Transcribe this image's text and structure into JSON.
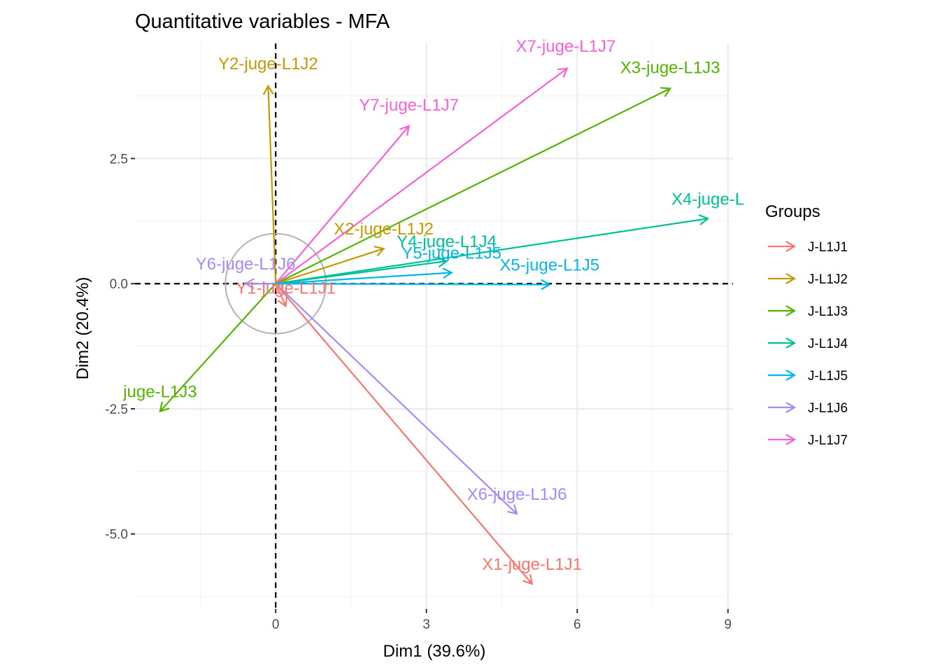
{
  "chart_data": {
    "type": "scatter",
    "subtype": "correlation-arrows",
    "title": "Quantitative variables - MFA",
    "xlabel": "Dim1 (39.6%)",
    "ylabel": "Dim2 (20.4%)",
    "xlim": [
      -2.8,
      9.1
    ],
    "ylim": [
      -6.5,
      4.8
    ],
    "x_ticks": [
      0,
      3,
      6,
      9
    ],
    "x_tick_labels": [
      "0",
      "3",
      "6",
      "9"
    ],
    "y_ticks": [
      -5.0,
      -2.5,
      0.0,
      2.5
    ],
    "y_tick_labels": [
      "-5.0",
      "-2.5",
      "0.0",
      "2.5"
    ],
    "x_minor_ticks": [
      -1.5,
      1.5,
      4.5,
      7.5
    ],
    "y_minor_ticks": [
      -6.25,
      -3.75,
      -1.25,
      1.25,
      3.75
    ],
    "grid": true,
    "reference_lines": {
      "x": 0,
      "y": 0,
      "style": "dashed"
    },
    "unit_circle_radius": 1,
    "legend": {
      "title": "Groups",
      "placement": "right",
      "entries": [
        {
          "name": "J-L1J1",
          "color": "#F8766D"
        },
        {
          "name": "J-L1J2",
          "color": "#C49A00"
        },
        {
          "name": "J-L1J3",
          "color": "#53B400"
        },
        {
          "name": "J-L1J4",
          "color": "#00C094"
        },
        {
          "name": "J-L1J5",
          "color": "#00B6EB"
        },
        {
          "name": "J-L1J6",
          "color": "#A58AFF"
        },
        {
          "name": "J-L1J7",
          "color": "#FB61D7"
        }
      ]
    },
    "variables": [
      {
        "label": "Y2-juge-L1J2",
        "group": "J-L1J2",
        "x": -0.15,
        "y": 3.95
      },
      {
        "label": "X7-juge-L1J7",
        "group": "J-L1J7",
        "x": 5.8,
        "y": 4.3
      },
      {
        "label": "X3-juge-L1J3",
        "group": "J-L1J3",
        "x": 7.85,
        "y": 3.9
      },
      {
        "label": "Y7-juge-L1J7",
        "group": "J-L1J7",
        "x": 2.65,
        "y": 3.15
      },
      {
        "label": "X4-juge-L",
        "group": "J-L1J4",
        "x": 8.6,
        "y": 1.3
      },
      {
        "label": "X2-juge-L1J2",
        "group": "J-L1J2",
        "x": 2.15,
        "y": 0.7
      },
      {
        "label": "Y4-juge-L1J4",
        "group": "J-L1J4",
        "x": 3.4,
        "y": 0.45
      },
      {
        "label": "Y5-juge-L1J5",
        "group": "J-L1J5",
        "x": 3.5,
        "y": 0.22
      },
      {
        "label": "X5-juge-L1J5",
        "group": "J-L1J5",
        "x": 5.45,
        "y": -0.02
      },
      {
        "label": "Y6-juge-L1J6",
        "group": "J-L1J6",
        "x": -0.6,
        "y": 0.0
      },
      {
        "label": "Y1-juge-L1J1",
        "group": "J-L1J1",
        "x": 0.2,
        "y": -0.45
      },
      {
        "label": "juge-L1J3",
        "group": "J-L1J3",
        "x": -2.3,
        "y": -2.55
      },
      {
        "label": "X6-juge-L1J6",
        "group": "J-L1J6",
        "x": 4.8,
        "y": -4.6
      },
      {
        "label": "X1-juge-L1J1",
        "group": "J-L1J1",
        "x": 5.1,
        "y": -6.0
      }
    ]
  }
}
